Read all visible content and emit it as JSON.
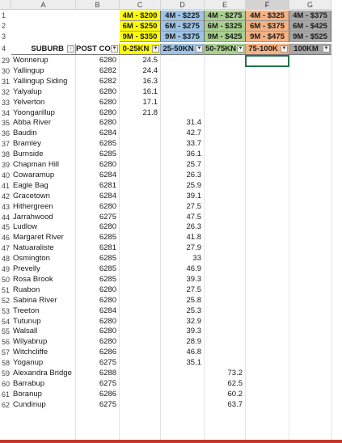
{
  "columns": [
    "A",
    "B",
    "C",
    "D",
    "E",
    "F",
    "G"
  ],
  "selected_column": "F",
  "price_bands": {
    "C": [
      "4M - $200",
      "6M - $250",
      "9M - $350"
    ],
    "D": [
      "4M - $225",
      "6M - $275",
      "9M - $375"
    ],
    "E": [
      "4M - $275",
      "6M - $325",
      "9M - $425"
    ],
    "F": [
      "4M - $325",
      "6M - $375",
      "9M - $475"
    ],
    "G": [
      "4M - $375",
      "6M - $425",
      "9M - $525"
    ]
  },
  "band_colors": {
    "C": "#ffff00",
    "D": "#9dc3e6",
    "E": "#a9d08e",
    "F": "#f4b183",
    "G": "#a6a6a6"
  },
  "headers": {
    "A": "SUBURB",
    "B": "POST COI",
    "C": "0-25KN",
    "D": "25-50KN",
    "E": "50-75KN",
    "F": "75-100K",
    "G": "100KM"
  },
  "header_icons": {
    "sort": "sort-filter-icon",
    "dropdown": "dropdown-icon"
  },
  "rows": [
    {
      "n": "29",
      "suburb": "Wonnerup",
      "post": "6280",
      "c": "24.5",
      "d": "",
      "e": ""
    },
    {
      "n": "30",
      "suburb": "Yallingup",
      "post": "6282",
      "c": "24.4",
      "d": "",
      "e": ""
    },
    {
      "n": "31",
      "suburb": "Yallingup Siding",
      "post": "6282",
      "c": "16.3",
      "d": "",
      "e": ""
    },
    {
      "n": "32",
      "suburb": "Yalyalup",
      "post": "6280",
      "c": "16.1",
      "d": "",
      "e": ""
    },
    {
      "n": "33",
      "suburb": "Yelverton",
      "post": "6280",
      "c": "17.1",
      "d": "",
      "e": ""
    },
    {
      "n": "34",
      "suburb": "Yoongarillup",
      "post": "6280",
      "c": "21.8",
      "d": "",
      "e": ""
    },
    {
      "n": "35",
      "suburb": "Abba River",
      "post": "6280",
      "c": "",
      "d": "31.4",
      "e": ""
    },
    {
      "n": "36",
      "suburb": "Baudin",
      "post": "6284",
      "c": "",
      "d": "42.7",
      "e": ""
    },
    {
      "n": "37",
      "suburb": "Bramley",
      "post": "6285",
      "c": "",
      "d": "33.7",
      "e": ""
    },
    {
      "n": "38",
      "suburb": "Burnside",
      "post": "6285",
      "c": "",
      "d": "36.1",
      "e": ""
    },
    {
      "n": "39",
      "suburb": "Chapman Hill",
      "post": "6280",
      "c": "",
      "d": "25.7",
      "e": ""
    },
    {
      "n": "40",
      "suburb": "Cowaramup",
      "post": "6284",
      "c": "",
      "d": "26.3",
      "e": ""
    },
    {
      "n": "41",
      "suburb": "Eagle Bag",
      "post": "6281",
      "c": "",
      "d": "25.9",
      "e": ""
    },
    {
      "n": "42",
      "suburb": "Gracetown",
      "post": "6284",
      "c": "",
      "d": "39.1",
      "e": ""
    },
    {
      "n": "43",
      "suburb": "Hithergreen",
      "post": "6280",
      "c": "",
      "d": "27.5",
      "e": ""
    },
    {
      "n": "44",
      "suburb": "Jarrahwood",
      "post": "6275",
      "c": "",
      "d": "47.5",
      "e": ""
    },
    {
      "n": "45",
      "suburb": "Ludlow",
      "post": "6280",
      "c": "",
      "d": "26.3",
      "e": ""
    },
    {
      "n": "46",
      "suburb": "Margaret River",
      "post": "6285",
      "c": "",
      "d": "41.8",
      "e": ""
    },
    {
      "n": "47",
      "suburb": "Natuaraliste",
      "post": "6281",
      "c": "",
      "d": "27.9",
      "e": ""
    },
    {
      "n": "48",
      "suburb": "Osmington",
      "post": "6285",
      "c": "",
      "d": "33",
      "e": ""
    },
    {
      "n": "49",
      "suburb": "Prevelly",
      "post": "6285",
      "c": "",
      "d": "46.9",
      "e": ""
    },
    {
      "n": "50",
      "suburb": "Rosa Brook",
      "post": "6285",
      "c": "",
      "d": "39.3",
      "e": ""
    },
    {
      "n": "51",
      "suburb": "Ruabon",
      "post": "6280",
      "c": "",
      "d": "27.5",
      "e": ""
    },
    {
      "n": "52",
      "suburb": "Sabina River",
      "post": "6280",
      "c": "",
      "d": "25.8",
      "e": ""
    },
    {
      "n": "53",
      "suburb": "Treeton",
      "post": "6284",
      "c": "",
      "d": "25.3",
      "e": ""
    },
    {
      "n": "54",
      "suburb": "Tutunup",
      "post": "6280",
      "c": "",
      "d": "32.9",
      "e": ""
    },
    {
      "n": "55",
      "suburb": "Walsall",
      "post": "6280",
      "c": "",
      "d": "39.3",
      "e": ""
    },
    {
      "n": "56",
      "suburb": "Wilyabrup",
      "post": "6280",
      "c": "",
      "d": "28.9",
      "e": ""
    },
    {
      "n": "57",
      "suburb": "Witchcliffe",
      "post": "6286",
      "c": "",
      "d": "46.8",
      "e": ""
    },
    {
      "n": "58",
      "suburb": "Yoganup",
      "post": "6275",
      "c": "",
      "d": "35.1",
      "e": ""
    },
    {
      "n": "59",
      "suburb": "Alexandra Bridge",
      "post": "6288",
      "c": "",
      "d": "",
      "e": "73.2"
    },
    {
      "n": "60",
      "suburb": "Barrabup",
      "post": "6275",
      "c": "",
      "d": "",
      "e": "62.5"
    },
    {
      "n": "61",
      "suburb": "Boranup",
      "post": "6286",
      "c": "",
      "d": "",
      "e": "60.2"
    },
    {
      "n": "62",
      "suburb": "Cundinup",
      "post": "6275",
      "c": "",
      "d": "",
      "e": "63.7"
    }
  ],
  "top_row_numbers": [
    "1",
    "2",
    "3",
    "4"
  ]
}
